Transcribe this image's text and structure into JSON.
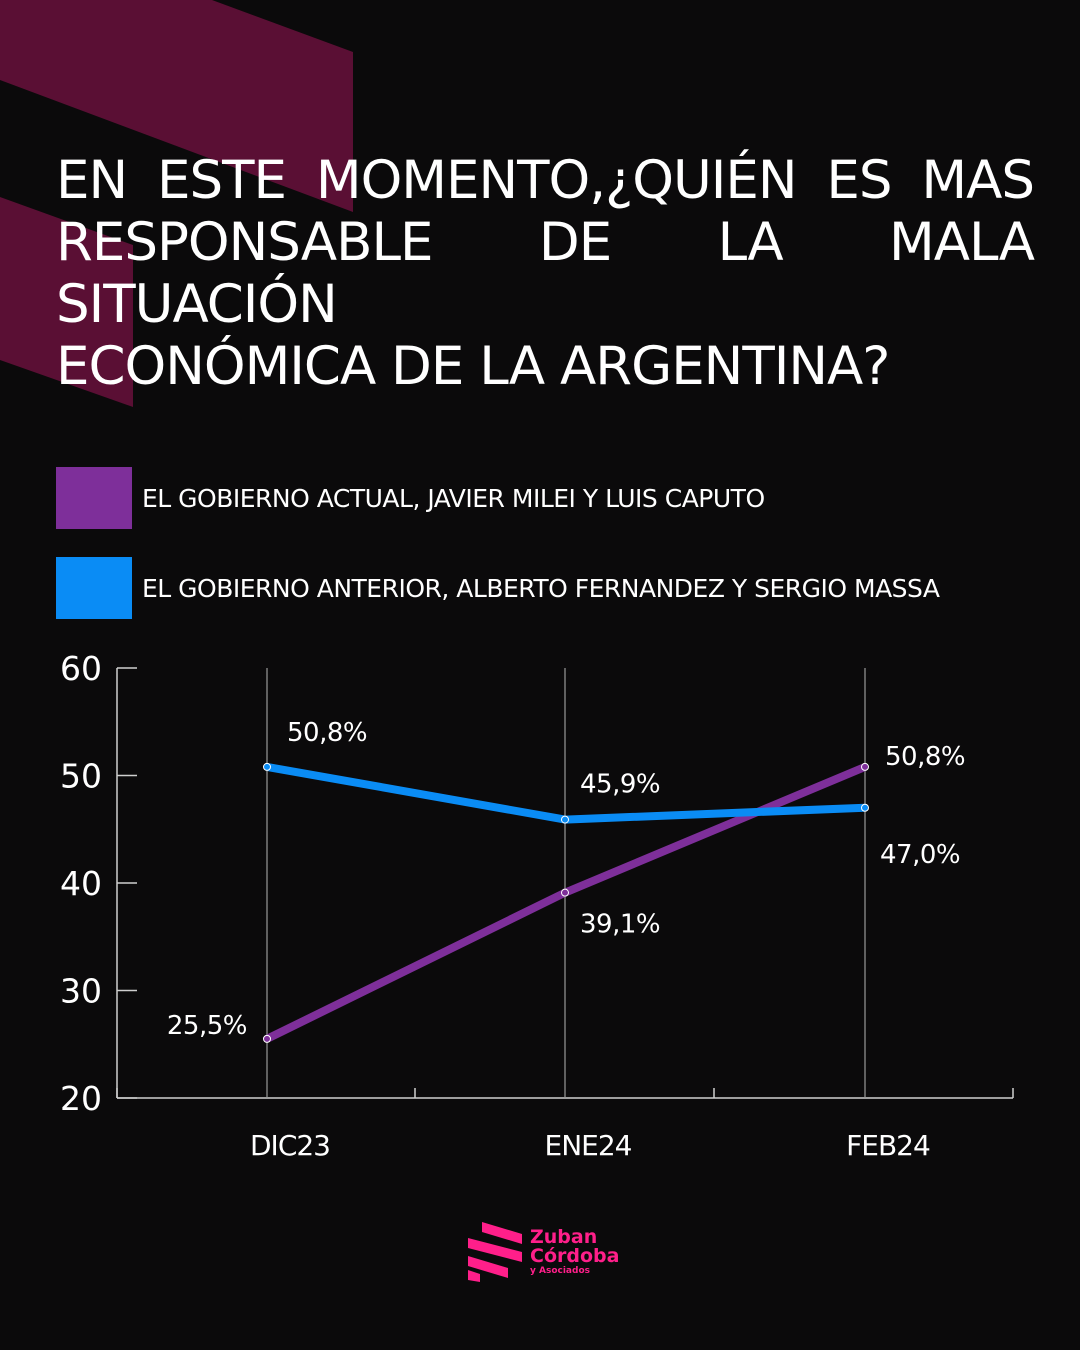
{
  "title_lines": [
    "EN ESTE MOMENTO,¿QUIÉN ES MAS",
    "RESPONSABLE DE LA MALA SITUACIÓN",
    "ECONÓMICA DE LA ARGENTINA?"
  ],
  "colors": {
    "background": "#0b0a0b",
    "decor": "#5a0f34",
    "purple": "#7e2f9a",
    "blue": "#0a8cf5",
    "brand": "#ff1f8a"
  },
  "legend": [
    {
      "label": "EL GOBIERNO ACTUAL, JAVIER MILEI Y LUIS CAPUTO",
      "color": "#7e2f9a"
    },
    {
      "label": "EL GOBIERNO ANTERIOR, ALBERTO FERNANDEZ Y SERGIO MASSA",
      "color": "#0a8cf5"
    }
  ],
  "chart_data": {
    "type": "line",
    "categories": [
      "DIC23",
      "ENE24",
      "FEB24"
    ],
    "series": [
      {
        "name": "EL GOBIERNO ACTUAL, JAVIER MILEI Y LUIS CAPUTO",
        "values": [
          25.5,
          39.1,
          50.8
        ],
        "labels": [
          "25,5%",
          "39,1%",
          "50,8%"
        ],
        "color": "#7e2f9a"
      },
      {
        "name": "EL GOBIERNO ANTERIOR, ALBERTO FERNANDEZ Y SERGIO MASSA",
        "values": [
          50.8,
          45.9,
          47.0
        ],
        "labels": [
          "50,8%",
          "45,9%",
          "47,0%"
        ],
        "color": "#0a8cf5"
      }
    ],
    "ylim": [
      20,
      60
    ],
    "yticks": [
      "20",
      "30",
      "40",
      "50",
      "60"
    ],
    "grid": "vertical",
    "legend_position": "top"
  },
  "logo": {
    "line1": "Zuban",
    "line2": "Córdoba",
    "line3": "y Asociados"
  }
}
